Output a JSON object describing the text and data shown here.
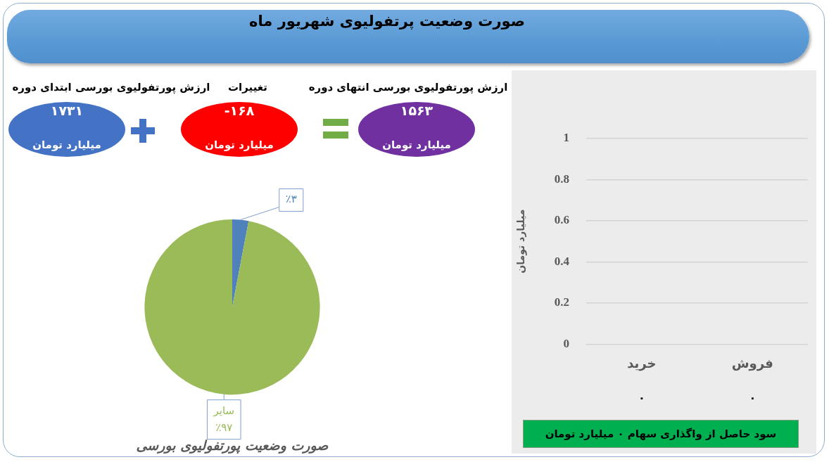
{
  "chart_data": [
    {
      "type": "other",
      "title": "صورت وضعیت پرتفولیوی شهریور ماه",
      "categories": [
        "ارزش پورتفولیوی بورسی ابتدای دوره",
        "تغییرات",
        "ارزش پورتفولیوی بورسی انتهای دوره"
      ],
      "values": [
        1731,
        -168,
        1563
      ],
      "value_labels": [
        "۱۷۳۱",
        "-۱۶۸",
        "۱۵۶۳"
      ],
      "colors": [
        "#4472c4",
        "#ff0000",
        "#7030a0"
      ],
      "annotations": [
        "میلیارد تومان",
        "میلیارد تومان",
        "میلیارد تومان"
      ]
    },
    {
      "type": "pie",
      "title": "صورت وضعیت پورتفولیوی بورسی",
      "categories": [
        null,
        "سایر"
      ],
      "values": [
        3,
        97
      ],
      "value_labels": [
        "٪۳",
        "٪۹۷"
      ],
      "colors": [
        "#4f81bd",
        "#9bbb59"
      ]
    },
    {
      "type": "bar",
      "categories": [
        "خرید",
        "فروش"
      ],
      "values": [
        0,
        0
      ],
      "value_labels": [
        "۰",
        "۰"
      ],
      "ylim": [
        0,
        1
      ],
      "yticks": [
        0,
        0.2,
        0.4,
        0.6,
        0.8,
        1
      ],
      "ylabel": "میلیارد تومان",
      "grid": "y",
      "annotations": [
        "سود حاصل از واگذاری سهام ۰ میلیارد تومان"
      ]
    }
  ]
}
